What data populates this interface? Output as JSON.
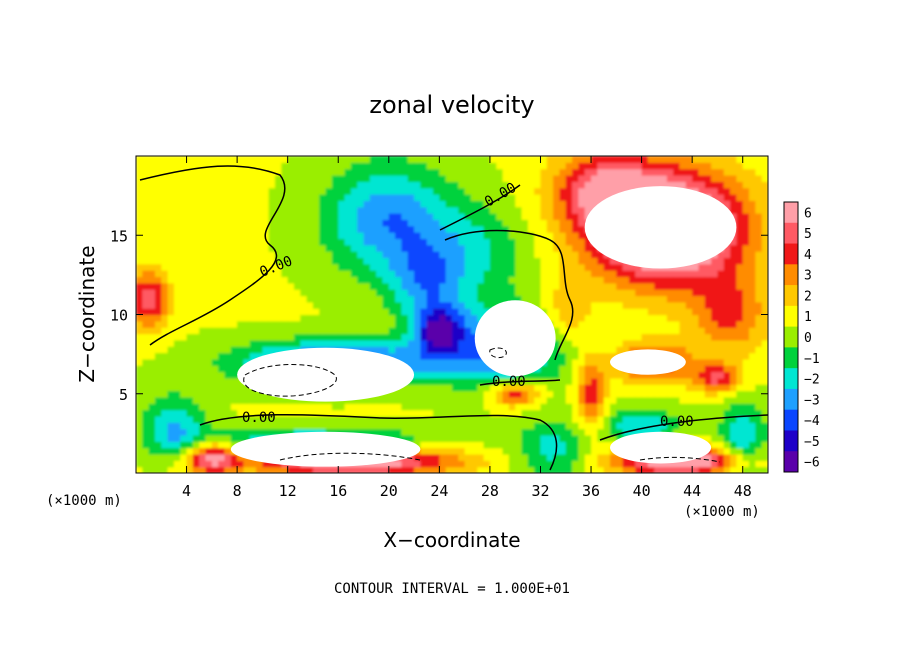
{
  "chart_data": {
    "type": "heatmap",
    "title": "zonal velocity",
    "xlabel": "X−coordinate",
    "ylabel": "Z−coordinate",
    "x_unit_left": "(×1000 m)",
    "x_unit_right": "(×1000 m)",
    "xlim": [
      0,
      50
    ],
    "ylim": [
      0,
      20
    ],
    "x_ticks": [
      4,
      8,
      12,
      16,
      20,
      24,
      28,
      32,
      36,
      40,
      44,
      48
    ],
    "x_tick_labels": [
      "4",
      "8",
      "12",
      "16",
      "20",
      "24",
      "28",
      "32",
      "36",
      "40",
      "44",
      "48"
    ],
    "y_ticks": [
      5,
      10,
      15
    ],
    "y_tick_labels": [
      "5",
      "10",
      "15"
    ],
    "colorbar": {
      "levels": [
        6,
        5,
        4,
        3,
        2,
        1,
        0,
        -1,
        -2,
        -3,
        -4,
        -5,
        -6
      ],
      "labels": [
        "6",
        "5",
        "4",
        "3",
        "2",
        "1",
        "0",
        "−1",
        "−2",
        "−3",
        "−4",
        "−5",
        "−6"
      ],
      "colors": [
        "#ff9fa8",
        "#ff5a64",
        "#f01818",
        "#ff8c00",
        "#ffc800",
        "#ffff00",
        "#9aee00",
        "#00d23c",
        "#00e6d2",
        "#1ea0ff",
        "#0a46ff",
        "#1e00c8",
        "#5a00aa"
      ]
    },
    "contour_labels": [
      "0.00",
      "0.00",
      "0.00",
      "0.00",
      "0.00"
    ],
    "footer": "CONTOUR INTERVAL = 1.000E+01",
    "field": {
      "background": 0.6,
      "features": [
        {
          "x": 1,
          "z": 11,
          "sx": 1.6,
          "sz": 1.8,
          "a": 4.5
        },
        {
          "x": 20,
          "z": 16,
          "sx": 5,
          "sz": 3.5,
          "a": -4
        },
        {
          "x": 23,
          "z": 12,
          "sx": 3,
          "sz": 2.5,
          "a": -3
        },
        {
          "x": 27,
          "z": 14,
          "sx": 4,
          "sz": 3,
          "a": -2
        },
        {
          "x": 16,
          "z": 7,
          "sx": 8,
          "sz": 1.4,
          "a": -5
        },
        {
          "x": 29,
          "z": 8,
          "sx": 5,
          "sz": 2.5,
          "a": -4
        },
        {
          "x": 24,
          "z": 9,
          "sx": 2,
          "sz": 1.5,
          "a": -5
        },
        {
          "x": 14,
          "z": 2,
          "sx": 9,
          "sz": 0.9,
          "a": -3.5
        },
        {
          "x": 3,
          "z": 3,
          "sx": 2.5,
          "sz": 2,
          "a": -3
        },
        {
          "x": 33,
          "z": 1.5,
          "sx": 3,
          "sz": 2,
          "a": -2.5
        },
        {
          "x": 40,
          "z": 3,
          "sx": 3,
          "sz": 1.2,
          "a": -3
        },
        {
          "x": 48,
          "z": 2,
          "sx": 2,
          "sz": 2.5,
          "a": -3
        },
        {
          "x": 17,
          "z": 0.8,
          "sx": 8,
          "sz": 0.9,
          "a": 7
        },
        {
          "x": 6,
          "z": 1,
          "sx": 2,
          "sz": 1,
          "a": 5
        },
        {
          "x": 43,
          "z": 0.8,
          "sx": 5,
          "sz": 0.9,
          "a": 7
        },
        {
          "x": 42,
          "z": 15.5,
          "sx": 6,
          "sz": 3.5,
          "a": 9
        },
        {
          "x": 37,
          "z": 18,
          "sx": 4,
          "sz": 2.5,
          "a": 4
        },
        {
          "x": 47,
          "z": 10,
          "sx": 3,
          "sz": 2.5,
          "a": 3
        },
        {
          "x": 41,
          "z": 7,
          "sx": 3,
          "sz": 1.3,
          "a": 4
        },
        {
          "x": 36,
          "z": 5,
          "sx": 1.2,
          "sz": 2.5,
          "a": 3.5
        },
        {
          "x": 30,
          "z": 5,
          "sx": 2,
          "sz": 0.8,
          "a": 4
        },
        {
          "x": 46,
          "z": 6,
          "sx": 1.8,
          "sz": 0.9,
          "a": 4
        },
        {
          "x": 34,
          "z": 10,
          "sx": 2,
          "sz": 2,
          "a": 2
        }
      ],
      "white_regions": [
        {
          "x": 15,
          "z": 6.2,
          "rx": 7,
          "rz": 1.7
        },
        {
          "x": 30,
          "z": 8.5,
          "rx": 3.2,
          "rz": 2.4
        },
        {
          "x": 41.5,
          "z": 15.5,
          "rx": 6,
          "rz": 2.6
        },
        {
          "x": 15,
          "z": 1.5,
          "rx": 7.5,
          "rz": 1.1
        },
        {
          "x": 41.5,
          "z": 1.6,
          "rx": 4,
          "rz": 1.0
        },
        {
          "x": 40.5,
          "z": 7.0,
          "rx": 3.0,
          "rz": 0.8
        }
      ]
    }
  }
}
